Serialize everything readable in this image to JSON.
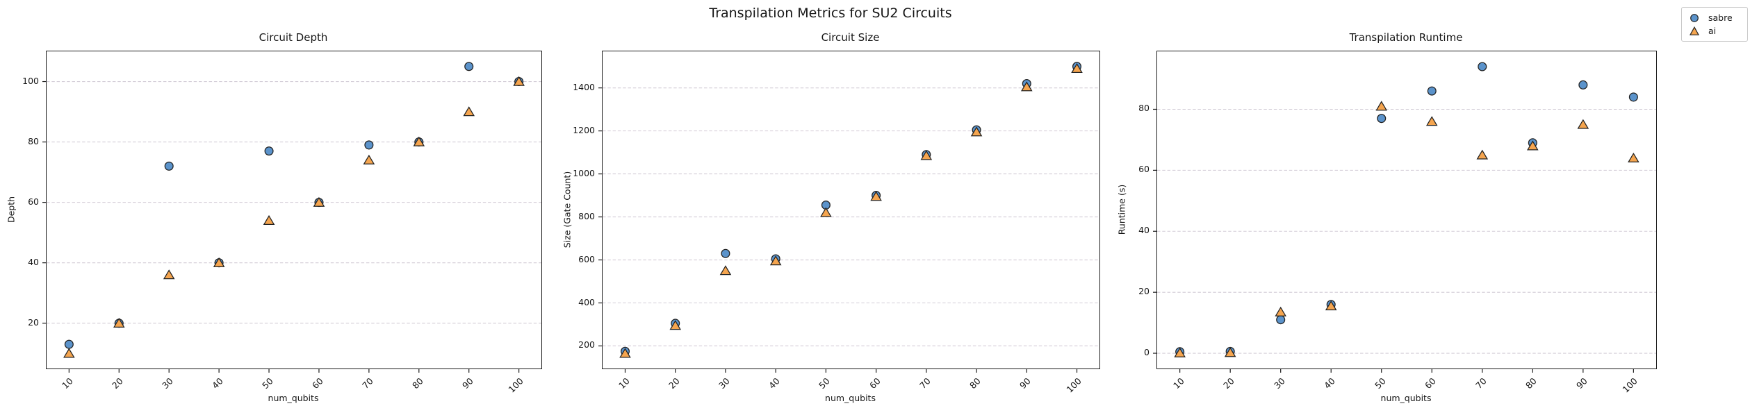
{
  "figure": {
    "suptitle": "Transpilation Metrics for SU2 Circuits"
  },
  "colors": {
    "sabre_fill": "#5B93CB",
    "ai_fill": "#F5A54F",
    "marker_edge": "#222222",
    "grid": "#d2ccd6",
    "spine": "#1a1a1a",
    "text": "#161616"
  },
  "legend": {
    "position": "top-right-outside",
    "entries": [
      {
        "label": "sabre",
        "marker": "circle"
      },
      {
        "label": "ai",
        "marker": "triangle"
      }
    ]
  },
  "chart_data": [
    {
      "type": "scatter",
      "title": "Circuit Depth",
      "xlabel": "num_qubits",
      "ylabel": "Depth",
      "x": [
        10,
        20,
        30,
        40,
        50,
        60,
        70,
        80,
        90,
        100
      ],
      "series": [
        {
          "name": "sabre",
          "marker": "circle",
          "values": [
            13,
            20,
            72,
            40,
            77,
            60,
            79,
            80,
            105,
            100
          ]
        },
        {
          "name": "ai",
          "marker": "triangle",
          "values": [
            10,
            20,
            36,
            40,
            54,
            60,
            74,
            80,
            90,
            100
          ]
        }
      ],
      "xlim": [
        5.5,
        104.5
      ],
      "ylim": [
        5,
        110
      ],
      "xticks": [
        10,
        20,
        30,
        40,
        50,
        60,
        70,
        80,
        90,
        100
      ],
      "yticks": [
        20,
        40,
        60,
        80,
        100
      ],
      "grid": "horizontal-dashed",
      "legend_shown": false
    },
    {
      "type": "scatter",
      "title": "Circuit Size",
      "xlabel": "num_qubits",
      "ylabel": "Size (Gate Count)",
      "x": [
        10,
        20,
        30,
        40,
        50,
        60,
        70,
        80,
        90,
        100
      ],
      "series": [
        {
          "name": "sabre",
          "marker": "circle",
          "values": [
            175,
            305,
            630,
            605,
            855,
            900,
            1090,
            1205,
            1420,
            1500
          ]
        },
        {
          "name": "ai",
          "marker": "triangle",
          "values": [
            165,
            295,
            550,
            595,
            820,
            895,
            1085,
            1195,
            1405,
            1490
          ]
        }
      ],
      "xlim": [
        5.5,
        104.5
      ],
      "ylim": [
        95,
        1570
      ],
      "xticks": [
        10,
        20,
        30,
        40,
        50,
        60,
        70,
        80,
        90,
        100
      ],
      "yticks": [
        200,
        400,
        600,
        800,
        1000,
        1200,
        1400
      ],
      "grid": "horizontal-dashed",
      "legend_shown": false
    },
    {
      "type": "scatter",
      "title": "Transpilation Runtime",
      "xlabel": "num_qubits",
      "ylabel": "Runtime (s)",
      "x": [
        10,
        20,
        30,
        40,
        50,
        60,
        70,
        80,
        90,
        100
      ],
      "series": [
        {
          "name": "sabre",
          "marker": "circle",
          "values": [
            0.5,
            0.6,
            11,
            16,
            77,
            86,
            94,
            69,
            88,
            84
          ]
        },
        {
          "name": "ai",
          "marker": "triangle",
          "values": [
            0.1,
            0.2,
            13.5,
            15.5,
            81,
            76,
            65,
            68,
            75,
            64
          ]
        }
      ],
      "xlim": [
        5.5,
        104.5
      ],
      "ylim": [
        -5,
        99
      ],
      "xticks": [
        10,
        20,
        30,
        40,
        50,
        60,
        70,
        80,
        90,
        100
      ],
      "yticks": [
        0,
        20,
        40,
        60,
        80
      ],
      "grid": "horizontal-dashed",
      "legend_shown": false
    }
  ]
}
